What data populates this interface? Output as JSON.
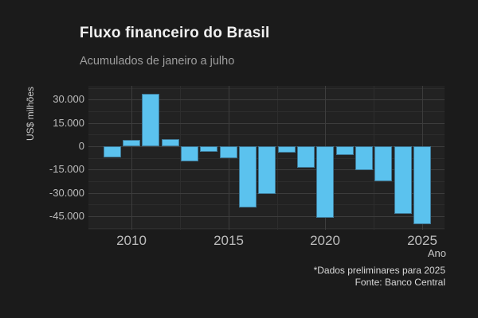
{
  "title": "Fluxo financeiro do Brasil",
  "subtitle": "Acumulados de janeiro a julho",
  "caption": {
    "line1": "*Dados preliminares para 2025",
    "line2": "Fonte: Banco Central"
  },
  "y_axis": {
    "title": "US$ milhões",
    "tick_labels": [
      "30.000",
      "15.000",
      "0",
      "-15.000",
      "-30.000",
      "-45.000"
    ],
    "tick_values": [
      30000,
      15000,
      0,
      -15000,
      -30000,
      -45000
    ]
  },
  "x_axis": {
    "title": "Ano",
    "tick_labels": [
      "2010",
      "2015",
      "2020",
      "2025"
    ],
    "tick_values": [
      2010,
      2015,
      2020,
      2025
    ]
  },
  "colors": {
    "background": "#1b1b1b",
    "panel": "#222222",
    "grid_major": "#3d3d3d",
    "grid_minor": "#2d2d2d",
    "bar_fill": "#5bc2ee",
    "bar_border": "#3e7896",
    "title_text": "#f0f0f0",
    "subtitle_text": "#9e9e9e",
    "axis_text": "#bdbdbd",
    "axis_title_text": "#c9c9c9",
    "caption_text": "#d9d9d9"
  },
  "chart_data": {
    "type": "bar",
    "title": "Fluxo financeiro do Brasil",
    "subtitle": "Acumulados de janeiro a julho",
    "xlabel": "Ano",
    "ylabel": "US$ milhões",
    "note": "*Dados preliminares para 2025",
    "source": "Fonte: Banco Central",
    "categories": [
      2009,
      2010,
      2011,
      2012,
      2013,
      2014,
      2015,
      2016,
      2017,
      2018,
      2019,
      2020,
      2021,
      2022,
      2023,
      2024,
      2025
    ],
    "values": [
      -7000,
      4000,
      34000,
      4500,
      -9500,
      -3500,
      -7500,
      -39500,
      -30500,
      -4000,
      -14000,
      -46000,
      -5500,
      -15500,
      -22500,
      -43500,
      -50000
    ],
    "ylim": [
      -53700,
      38850
    ],
    "xlim": [
      2007.78,
      2026.15
    ],
    "yticks_major": [
      30000,
      15000,
      0,
      -15000,
      -30000,
      -45000
    ],
    "yticks_minor": [
      37500,
      22500,
      7500,
      -7500,
      -22500,
      -37500,
      -52500
    ],
    "xticks_major": [
      2010,
      2015,
      2020,
      2025
    ],
    "xticks_minor": [
      2012.5,
      2017.5,
      2022.5
    ],
    "grid": true,
    "legend": false,
    "bar_color": "#5bc2ee"
  }
}
